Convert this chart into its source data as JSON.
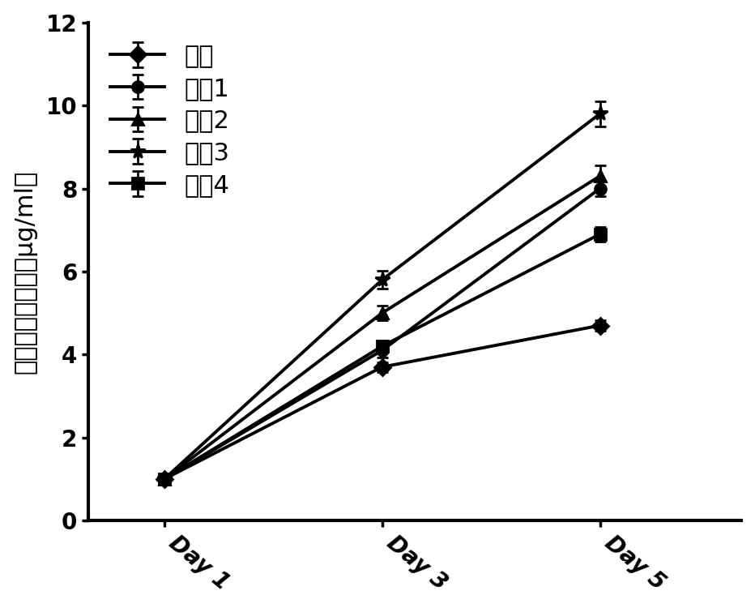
{
  "x_values": [
    1,
    3,
    5
  ],
  "x_labels": [
    "Day 1",
    "Day 3",
    "Day 5"
  ],
  "series": [
    {
      "label": "对照",
      "values": [
        1.0,
        3.7,
        4.7
      ],
      "errors": [
        0.05,
        0.12,
        0.12
      ],
      "marker": "D",
      "color": "#000000",
      "linewidth": 2.8,
      "markersize": 10,
      "markeredgewidth": 2.0
    },
    {
      "label": "克隆1",
      "values": [
        1.0,
        4.1,
        8.0
      ],
      "errors": [
        0.05,
        0.18,
        0.18
      ],
      "marker": "o",
      "color": "#000000",
      "linewidth": 2.8,
      "markersize": 10,
      "markeredgewidth": 2.0
    },
    {
      "label": "克隆2",
      "values": [
        1.0,
        5.0,
        8.3
      ],
      "errors": [
        0.05,
        0.18,
        0.25
      ],
      "marker": "^",
      "color": "#000000",
      "linewidth": 2.8,
      "markersize": 10,
      "markeredgewidth": 2.0
    },
    {
      "label": "克隆3",
      "values": [
        1.0,
        5.8,
        9.8
      ],
      "errors": [
        0.05,
        0.22,
        0.3
      ],
      "marker": "*",
      "color": "#000000",
      "linewidth": 2.8,
      "markersize": 13,
      "markeredgewidth": 2.0
    },
    {
      "label": "克隆4",
      "values": [
        1.0,
        4.2,
        6.9
      ],
      "errors": [
        0.05,
        0.12,
        0.18
      ],
      "marker": "s",
      "color": "#000000",
      "linewidth": 2.8,
      "markersize": 10,
      "markeredgewidth": 2.0
    }
  ],
  "ylabel_chinese": "赛罗华抗体浓度（μg/ml）",
  "xlabel": "",
  "ylim": [
    0,
    12
  ],
  "yticks": [
    0,
    2,
    4,
    6,
    8,
    10,
    12
  ],
  "background_color": "#ffffff",
  "legend_fontsize": 22,
  "axis_fontsize": 22,
  "tick_fontsize": 20,
  "line_color": "#000000"
}
